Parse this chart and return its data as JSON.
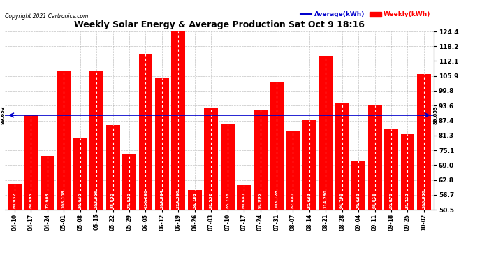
{
  "title": "Weekly Solar Energy & Average Production Sat Oct 9 18:16",
  "copyright": "Copyright 2021 Cartronics.com",
  "categories": [
    "04-10",
    "04-17",
    "04-24",
    "05-01",
    "05-08",
    "05-15",
    "05-22",
    "05-29",
    "06-05",
    "06-12",
    "06-19",
    "06-26",
    "07-03",
    "07-10",
    "07-17",
    "07-24",
    "07-31",
    "08-07",
    "08-14",
    "08-21",
    "08-28",
    "09-04",
    "09-11",
    "09-18",
    "09-25",
    "10-02"
  ],
  "values": [
    60.932,
    89.896,
    72.908,
    108.108,
    80.04,
    108.096,
    85.52,
    73.52,
    115.256,
    104.844,
    124.396,
    58.708,
    92.532,
    85.736,
    60.64,
    91.996,
    103.128,
    82.88,
    87.664,
    114.28,
    94.704,
    70.664,
    93.816,
    83.876,
    81.712,
    106.836
  ],
  "average": 89.653,
  "bar_color": "#ff0000",
  "avg_line_color": "#0000cc",
  "ylim_min": 50.5,
  "ylim_max": 124.4,
  "yticks": [
    50.5,
    56.7,
    62.8,
    69.0,
    75.1,
    81.3,
    87.4,
    93.6,
    99.8,
    105.9,
    112.1,
    118.2,
    124.4
  ],
  "avg_label": "89.653",
  "legend_avg_label": "Average(kWh)",
  "legend_weekly_label": "Weekly(kWh)",
  "bg_color": "#ffffff",
  "grid_color": "#aaaaaa"
}
